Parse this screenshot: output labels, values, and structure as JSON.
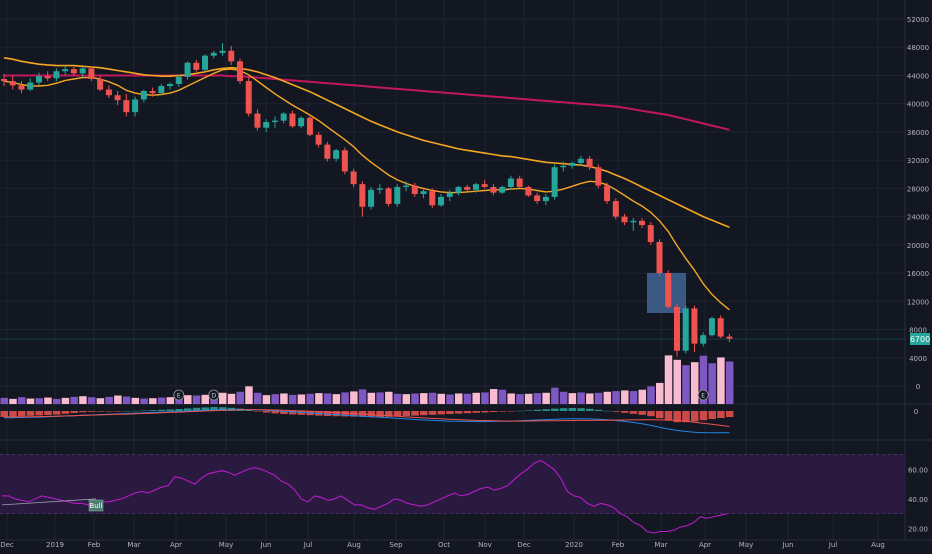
{
  "colors": {
    "background": "#131722",
    "grid": "#1f2330",
    "panel_border": "#2a2e39",
    "axis_text": "#b2b5be",
    "bull": "#26a69a",
    "bear": "#ef5350",
    "bull_light": "#ffcdd2",
    "volume_purple": "#7e57c2",
    "volume_pink": "#f8bbd0",
    "ma_fast": "#f5a623",
    "ma_slow": "#c2185b",
    "ema_blue": "#1e88e5",
    "macd_red": "#ef5350",
    "rsi_line": "#c21bd6",
    "rsi_band": "#2b1a3f",
    "highlight_box": "#3f5f8f",
    "price_tag": "#26a69a",
    "bull_marker": "#4a7c6f"
  },
  "x_axis": {
    "labels": [
      "Dec",
      "2019",
      "Feb",
      "Mar",
      "Apr",
      "May",
      "Jun",
      "Jul",
      "Aug",
      "Sep",
      "Oct",
      "Nov",
      "Dec",
      "2020",
      "Feb",
      "Mar",
      "Apr",
      "May",
      "Jun",
      "Jul",
      "Aug"
    ]
  },
  "price_axis": {
    "ticks": [
      52000,
      48000,
      44000,
      40000,
      36000,
      32000,
      28000,
      24000,
      20000,
      16000,
      12000,
      8000,
      4000,
      0
    ]
  },
  "price_tag": {
    "label": "6700",
    "value": 6700
  },
  "macd_axis": {
    "ticks": [
      0
    ]
  },
  "rsi_axis": {
    "ticks": [
      "60.00",
      "40.00",
      "20.00"
    ],
    "band": [
      30,
      70
    ],
    "ylim": [
      15,
      75
    ]
  },
  "markers": [
    {
      "label": "E",
      "bar": 20
    },
    {
      "label": "D",
      "bar": 24
    },
    {
      "label": "E",
      "bar": 80
    },
    {
      "label": "E",
      "bar": 108
    }
  ],
  "bull_tag": {
    "label": "Bull"
  },
  "chart_data": {
    "type": "candlestick",
    "ylim": [
      0,
      54000
    ],
    "series_ohlc": [
      [
        43500,
        44200,
        42500,
        43200
      ],
      [
        43200,
        44000,
        42000,
        42600
      ],
      [
        42600,
        43200,
        41500,
        42000
      ],
      [
        42000,
        43600,
        41800,
        43000
      ],
      [
        43000,
        44400,
        42600,
        43900
      ],
      [
        43900,
        44600,
        43200,
        43600
      ],
      [
        43600,
        45000,
        43200,
        44600
      ],
      [
        44600,
        45400,
        44000,
        44900
      ],
      [
        44900,
        45200,
        44000,
        44300
      ],
      [
        44300,
        45200,
        43800,
        45000
      ],
      [
        45000,
        45300,
        43200,
        43500
      ],
      [
        43500,
        44000,
        41800,
        42000
      ],
      [
        42000,
        42600,
        40800,
        41200
      ],
      [
        41200,
        41800,
        39800,
        40500
      ],
      [
        40500,
        41400,
        38200,
        38800
      ],
      [
        38800,
        41000,
        38200,
        40600
      ],
      [
        40600,
        42000,
        40200,
        41800
      ],
      [
        41800,
        42300,
        41000,
        41500
      ],
      [
        41500,
        42800,
        41200,
        42500
      ],
      [
        42500,
        43000,
        42000,
        42800
      ],
      [
        42800,
        44000,
        42400,
        43800
      ],
      [
        43800,
        46000,
        43400,
        45800
      ],
      [
        45800,
        46200,
        44500,
        44800
      ],
      [
        44800,
        47000,
        44600,
        46800
      ],
      [
        46800,
        47500,
        46400,
        47200
      ],
      [
        47200,
        48600,
        46800,
        47500
      ],
      [
        47500,
        48200,
        45500,
        46000
      ],
      [
        46000,
        46400,
        42800,
        43200
      ],
      [
        43200,
        43800,
        38200,
        38600
      ],
      [
        38600,
        39200,
        36200,
        36600
      ],
      [
        36600,
        37800,
        36000,
        37400
      ],
      [
        37400,
        38200,
        36600,
        37600
      ],
      [
        37600,
        38800,
        37200,
        38600
      ],
      [
        38600,
        39000,
        36600,
        36800
      ],
      [
        36800,
        38200,
        36500,
        38000
      ],
      [
        38000,
        38400,
        35400,
        35600
      ],
      [
        35600,
        36000,
        33800,
        34200
      ],
      [
        34200,
        34600,
        31800,
        32200
      ],
      [
        32200,
        33600,
        31800,
        33400
      ],
      [
        33400,
        33800,
        30000,
        30400
      ],
      [
        30400,
        30800,
        28200,
        28600
      ],
      [
        28600,
        29000,
        24000,
        25400
      ],
      [
        25400,
        28200,
        25000,
        27800
      ],
      [
        27800,
        28600,
        27200,
        28000
      ],
      [
        28000,
        28200,
        25400,
        25800
      ],
      [
        25800,
        28600,
        25400,
        28200
      ],
      [
        28200,
        29000,
        27600,
        28400
      ],
      [
        28400,
        28800,
        26800,
        27200
      ],
      [
        27200,
        28000,
        26600,
        27600
      ],
      [
        27600,
        28000,
        25200,
        25600
      ],
      [
        25600,
        27200,
        25400,
        26800
      ],
      [
        26800,
        27800,
        26200,
        27400
      ],
      [
        27400,
        28400,
        27000,
        28200
      ],
      [
        28200,
        28500,
        27600,
        27800
      ],
      [
        27800,
        28800,
        27400,
        28600
      ],
      [
        28600,
        29200,
        28000,
        28200
      ],
      [
        28200,
        28600,
        27000,
        27400
      ],
      [
        27400,
        28400,
        27200,
        28200
      ],
      [
        28200,
        29800,
        27800,
        29400
      ],
      [
        29400,
        29800,
        28000,
        28200
      ],
      [
        28200,
        28400,
        26800,
        27000
      ],
      [
        27000,
        27400,
        25800,
        26200
      ],
      [
        26200,
        27200,
        25600,
        26800
      ],
      [
        26800,
        31400,
        26400,
        31000
      ],
      [
        31000,
        31800,
        30400,
        31200
      ],
      [
        31200,
        31800,
        30800,
        31600
      ],
      [
        31600,
        32600,
        31200,
        32200
      ],
      [
        32200,
        32600,
        30600,
        31000
      ],
      [
        31000,
        31400,
        28000,
        28400
      ],
      [
        28400,
        28800,
        25800,
        26200
      ],
      [
        26200,
        26600,
        23600,
        24000
      ],
      [
        24000,
        24400,
        22800,
        23200
      ],
      [
        23200,
        23800,
        22000,
        23400
      ],
      [
        23400,
        23800,
        22400,
        22800
      ],
      [
        22800,
        23200,
        20000,
        20400
      ],
      [
        20400,
        20800,
        15600,
        16000
      ],
      [
        16000,
        16400,
        11000,
        11200
      ],
      [
        11200,
        11600,
        4200,
        5000
      ],
      [
        5000,
        11400,
        4600,
        11000
      ],
      [
        11000,
        11400,
        4800,
        6000
      ],
      [
        6000,
        7600,
        5600,
        7200
      ],
      [
        7200,
        9800,
        7000,
        9600
      ],
      [
        9600,
        10000,
        6800,
        7000
      ],
      [
        7000,
        7400,
        6200,
        6700
      ]
    ],
    "ma_fast": [
      43200,
      43000,
      42700,
      42500,
      42500,
      42600,
      42900,
      43300,
      43500,
      43700,
      43700,
      43500,
      43100,
      42600,
      41900,
      41500,
      41300,
      41200,
      41300,
      41500,
      41900,
      42500,
      43100,
      43700,
      44300,
      44800,
      44900,
      44700,
      44100,
      43200,
      42300,
      41400,
      40600,
      39800,
      39100,
      38400,
      37600,
      36700,
      35800,
      34900,
      33900,
      32700,
      31700,
      30800,
      29900,
      29200,
      28700,
      28300,
      28000,
      27700,
      27500,
      27400,
      27400,
      27500,
      27600,
      27700,
      27800,
      27800,
      27900,
      28000,
      27900,
      27700,
      27500,
      27600,
      27900,
      28300,
      28700,
      29000,
      28900,
      28500,
      27800,
      27000,
      26200,
      25500,
      24600,
      23400,
      21900,
      19900,
      18100,
      16400,
      14500,
      13000,
      11800,
      10800
    ],
    "ma_mid": [
      46500,
      46300,
      46000,
      45800,
      45600,
      45500,
      45400,
      45400,
      45400,
      45300,
      45200,
      45100,
      44900,
      44700,
      44500,
      44300,
      44100,
      44000,
      43900,
      43900,
      44000,
      44100,
      44300,
      44500,
      44800,
      45000,
      45100,
      45000,
      44800,
      44500,
      44100,
      43700,
      43200,
      42700,
      42200,
      41700,
      41100,
      40500,
      39900,
      39300,
      38700,
      38100,
      37500,
      37000,
      36500,
      36000,
      35600,
      35200,
      34800,
      34500,
      34200,
      33900,
      33600,
      33400,
      33200,
      33000,
      32800,
      32600,
      32500,
      32300,
      32100,
      31900,
      31700,
      31600,
      31500,
      31400,
      31300,
      31100,
      30800,
      30400,
      29900,
      29400,
      28800,
      28200,
      27600,
      27000,
      26400,
      25800,
      25200,
      24600,
      24000,
      23500,
      23000,
      22500
    ],
    "ma_slow": [
      44000,
      44000,
      44000,
      44000,
      44000,
      44000,
      44000,
      44000,
      44000,
      44000,
      44000,
      44000,
      44000,
      44000,
      44000,
      44000,
      44000,
      44000,
      44000,
      44000,
      44000,
      44000,
      44000,
      44000,
      44000,
      44000,
      43900,
      43900,
      43800,
      43700,
      43600,
      43500,
      43400,
      43300,
      43200,
      43100,
      43000,
      42900,
      42800,
      42700,
      42600,
      42500,
      42400,
      42300,
      42200,
      42100,
      42000,
      41900,
      41800,
      41700,
      41600,
      41500,
      41400,
      41300,
      41200,
      41100,
      41000,
      40900,
      40800,
      40700,
      40600,
      40500,
      40400,
      40300,
      40200,
      40100,
      40000,
      39900,
      39800,
      39700,
      39600,
      39400,
      39200,
      39000,
      38800,
      38600,
      38400,
      38100,
      37800,
      37500,
      37200,
      36900,
      36600,
      36300
    ],
    "volume": [
      1800,
      1500,
      2000,
      1600,
      1700,
      1900,
      1500,
      1800,
      2100,
      2300,
      2000,
      1700,
      2100,
      2500,
      2200,
      1800,
      1600,
      1700,
      1900,
      2000,
      2200,
      2600,
      2500,
      2700,
      3100,
      3300,
      3000,
      3600,
      5200,
      3300,
      2600,
      2900,
      3100,
      2700,
      2800,
      3000,
      3200,
      3100,
      2900,
      3400,
      3700,
      4300,
      3300,
      3400,
      3600,
      3000,
      2900,
      3100,
      3200,
      3300,
      3000,
      2800,
      3100,
      3000,
      3300,
      3400,
      4400,
      4200,
      3100,
      2900,
      3000,
      3200,
      3300,
      4800,
      3600,
      3200,
      3400,
      3100,
      3300,
      3600,
      3800,
      4000,
      3800,
      4200,
      5200,
      6200,
      14300,
      13000,
      11400,
      12300,
      14200,
      12000,
      13700,
      12500
    ],
    "volume_colors": [
      "p",
      "k",
      "p",
      "k",
      "p",
      "k",
      "p",
      "k",
      "p",
      "k",
      "p",
      "k",
      "p",
      "k",
      "p",
      "k",
      "p",
      "k",
      "p",
      "k",
      "p",
      "k",
      "p",
      "k",
      "p",
      "k",
      "k",
      "p",
      "k",
      "p",
      "k",
      "p",
      "k",
      "p",
      "k",
      "p",
      "k",
      "p",
      "k",
      "p",
      "k",
      "p",
      "k",
      "p",
      "k",
      "p",
      "k",
      "p",
      "k",
      "p",
      "k",
      "p",
      "k",
      "p",
      "k",
      "p",
      "k",
      "p",
      "k",
      "p",
      "k",
      "p",
      "k",
      "p",
      "p",
      "k",
      "p",
      "k",
      "p",
      "k",
      "p",
      "k",
      "p",
      "k",
      "p",
      "k",
      "k",
      "k",
      "p",
      "k",
      "p",
      "p",
      "k",
      "p"
    ],
    "macd_hist": [
      -300,
      -280,
      -260,
      -240,
      -220,
      -200,
      -180,
      -140,
      -100,
      -60,
      -40,
      -30,
      -20,
      -10,
      0,
      10,
      20,
      40,
      60,
      80,
      100,
      130,
      160,
      180,
      200,
      190,
      160,
      120,
      60,
      -20,
      -80,
      -120,
      -150,
      -170,
      -190,
      -210,
      -230,
      -250,
      -260,
      -270,
      -280,
      -290,
      -300,
      -300,
      -290,
      -270,
      -250,
      -230,
      -210,
      -190,
      -170,
      -150,
      -130,
      -110,
      -90,
      -70,
      -50,
      -30,
      -10,
      10,
      30,
      60,
      90,
      120,
      140,
      150,
      140,
      110,
      60,
      10,
      -40,
      -90,
      -140,
      -190,
      -260,
      -360,
      -480,
      -560,
      -560,
      -520,
      -460,
      -400,
      -350,
      -300
    ],
    "macd_line": [
      -380,
      -370,
      -360,
      -350,
      -340,
      -320,
      -300,
      -280,
      -260,
      -240,
      -220,
      -200,
      -180,
      -160,
      -140,
      -120,
      -100,
      -80,
      -60,
      -40,
      -20,
      0,
      20,
      40,
      60,
      80,
      90,
      90,
      80,
      60,
      40,
      10,
      -20,
      -50,
      -80,
      -110,
      -140,
      -170,
      -200,
      -230,
      -260,
      -290,
      -320,
      -350,
      -380,
      -410,
      -440,
      -470,
      -500,
      -520,
      -540,
      -560,
      -570,
      -580,
      -590,
      -590,
      -580,
      -570,
      -560,
      -540,
      -520,
      -500,
      -480,
      -460,
      -440,
      -430,
      -430,
      -440,
      -460,
      -490,
      -530,
      -580,
      -640,
      -710,
      -800,
      -900,
      -1000,
      -1080,
      -1140,
      -1180,
      -1200,
      -1210,
      -1210,
      -1200
    ],
    "macd_signal": [
      -330,
      -330,
      -325,
      -320,
      -310,
      -300,
      -290,
      -275,
      -260,
      -245,
      -230,
      -215,
      -200,
      -185,
      -170,
      -155,
      -140,
      -120,
      -100,
      -80,
      -60,
      -40,
      -20,
      0,
      20,
      40,
      55,
      65,
      70,
      70,
      65,
      55,
      40,
      25,
      5,
      -15,
      -40,
      -65,
      -90,
      -115,
      -145,
      -175,
      -205,
      -235,
      -265,
      -295,
      -325,
      -355,
      -385,
      -410,
      -435,
      -460,
      -480,
      -500,
      -520,
      -535,
      -545,
      -555,
      -560,
      -560,
      -555,
      -550,
      -545,
      -540,
      -535,
      -530,
      -525,
      -520,
      -515,
      -510,
      -505,
      -500,
      -495,
      -490,
      -490,
      -495,
      -505,
      -520,
      -560,
      -620,
      -680,
      -740,
      -800,
      -860
    ],
    "rsi": [
      42,
      42,
      40,
      39,
      38,
      40,
      42,
      41,
      40,
      39,
      38,
      37,
      37,
      36,
      37,
      38,
      38,
      39,
      40,
      42,
      44,
      45,
      44,
      46,
      48,
      49,
      55,
      54,
      52,
      50,
      54,
      57,
      58,
      59,
      58,
      56,
      58,
      60,
      61,
      60,
      58,
      56,
      52,
      50,
      46,
      40,
      38,
      42,
      41,
      39,
      40,
      42,
      39,
      36,
      36,
      34,
      33,
      35,
      37,
      40,
      39,
      37,
      36,
      35,
      36,
      38,
      40,
      42,
      44,
      42,
      43,
      45,
      47,
      48,
      46,
      47,
      49,
      53,
      57,
      60,
      64,
      66,
      63,
      60,
      54,
      45,
      42,
      41,
      37,
      35,
      37,
      36,
      34,
      30,
      28,
      24,
      22,
      18,
      17,
      18,
      18,
      19,
      21,
      22,
      24,
      28,
      27,
      28,
      29,
      30
    ],
    "cloud": [
      [
        57,
        61
      ],
      [
        55,
        62
      ],
      [
        53,
        62
      ],
      [
        51,
        62
      ],
      [
        50,
        62
      ]
    ]
  }
}
